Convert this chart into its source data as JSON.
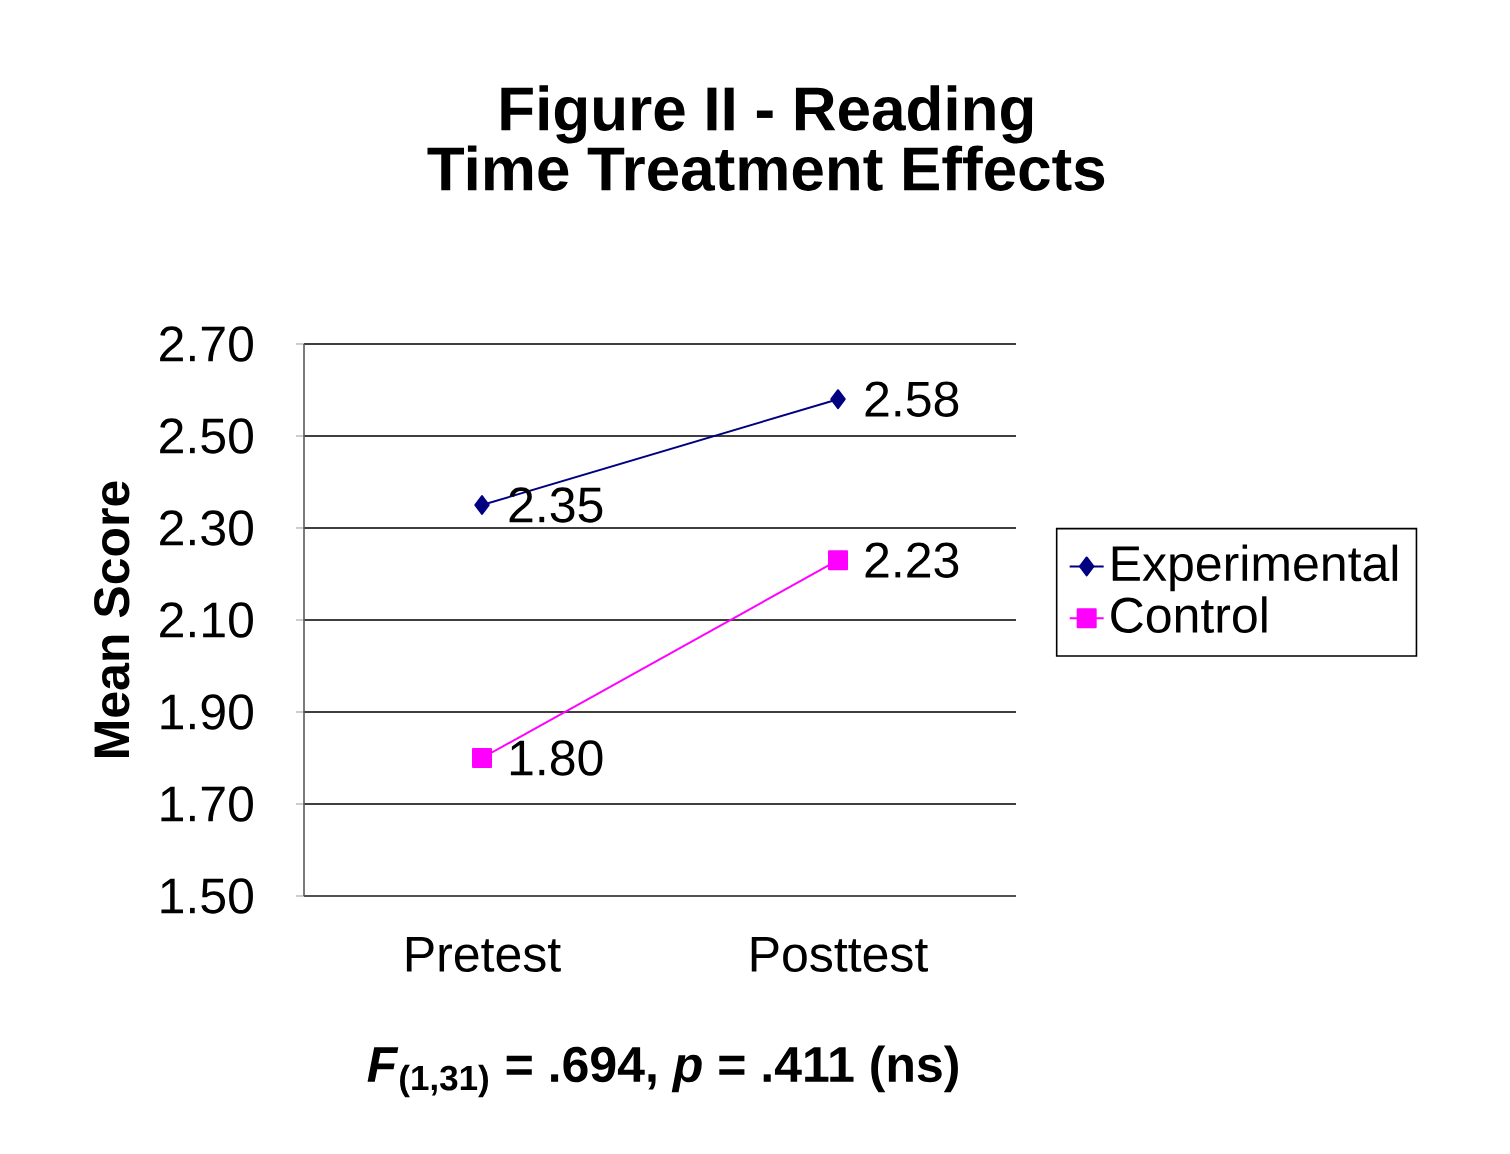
{
  "chart_data": {
    "type": "line",
    "title": "Figure II - Reading Time Treatment Effects",
    "xlabel": "*F*$_{(1,31)}$ = .694, *p* = .411 (ns)",
    "ylabel": "Mean Score",
    "categories": [
      "Pretest",
      "Posttest"
    ],
    "series": [
      {
        "name": "Experimental",
        "color": "#000080",
        "marker": "diamond",
        "values": [
          2.35,
          2.58
        ],
        "value_labels": [
          "2.35",
          "2.58"
        ]
      },
      {
        "name": "Control",
        "color": "#ff00ff",
        "marker": "square",
        "values": [
          1.8,
          2.23
        ],
        "value_labels": [
          "1.80",
          "2.23"
        ]
      }
    ],
    "ylim": [
      1.5,
      2.7
    ],
    "yticks": [
      {
        "value": 1.5,
        "label": "1.50"
      },
      {
        "value": 1.7,
        "label": "1.70"
      },
      {
        "value": 1.9,
        "label": "1.90"
      },
      {
        "value": 2.1,
        "label": "2.10"
      },
      {
        "value": 2.3,
        "label": "2.30"
      },
      {
        "value": 2.5,
        "label": "2.50"
      },
      {
        "value": 2.7,
        "label": "2.70"
      }
    ],
    "grid": "y",
    "legend": "right",
    "line_style": "solid"
  }
}
